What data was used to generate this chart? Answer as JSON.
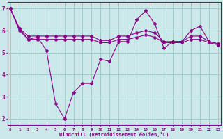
{
  "xlabel": "Windchill (Refroidissement éolien,°C)",
  "bg_color": "#cce8e8",
  "line_color": "#880088",
  "grid_color": "#99cccc",
  "series1": {
    "x": [
      0,
      1,
      2,
      3,
      4,
      5,
      6,
      7,
      8,
      9,
      10,
      11,
      12,
      13,
      14,
      15,
      16,
      17,
      18,
      19,
      20,
      21,
      22,
      23
    ],
    "y": [
      7.0,
      6.1,
      5.6,
      5.7,
      5.1,
      2.7,
      2.0,
      3.2,
      3.6,
      3.6,
      4.7,
      4.6,
      5.5,
      5.5,
      6.5,
      6.9,
      6.3,
      5.2,
      5.5,
      5.5,
      6.0,
      6.2,
      5.5,
      5.4
    ]
  },
  "series2": {
    "x": [
      0,
      1,
      2,
      3,
      4,
      5,
      6,
      7,
      8,
      9,
      10,
      11,
      12,
      13,
      14,
      15,
      16,
      17,
      18,
      19,
      20,
      21,
      22,
      23
    ],
    "y": [
      7.0,
      6.1,
      5.75,
      5.75,
      5.75,
      5.75,
      5.75,
      5.75,
      5.75,
      5.75,
      5.55,
      5.55,
      5.75,
      5.75,
      5.9,
      6.0,
      5.9,
      5.5,
      5.5,
      5.5,
      5.75,
      5.75,
      5.5,
      5.4
    ]
  },
  "series3": {
    "x": [
      0,
      1,
      2,
      3,
      4,
      5,
      6,
      7,
      8,
      9,
      10,
      11,
      12,
      13,
      14,
      15,
      16,
      17,
      18,
      19,
      20,
      21,
      22,
      23
    ],
    "y": [
      7.0,
      6.0,
      5.6,
      5.6,
      5.6,
      5.6,
      5.6,
      5.6,
      5.6,
      5.6,
      5.45,
      5.45,
      5.6,
      5.6,
      5.7,
      5.8,
      5.7,
      5.45,
      5.45,
      5.45,
      5.6,
      5.6,
      5.45,
      5.35
    ]
  },
  "ylim": [
    1.7,
    7.3
  ],
  "yticks": [
    2,
    3,
    4,
    5,
    6,
    7
  ],
  "xticks": [
    0,
    1,
    2,
    3,
    4,
    5,
    6,
    7,
    8,
    9,
    10,
    11,
    12,
    13,
    14,
    15,
    16,
    17,
    18,
    19,
    20,
    21,
    22,
    23
  ],
  "xlim": [
    -0.3,
    23.3
  ]
}
